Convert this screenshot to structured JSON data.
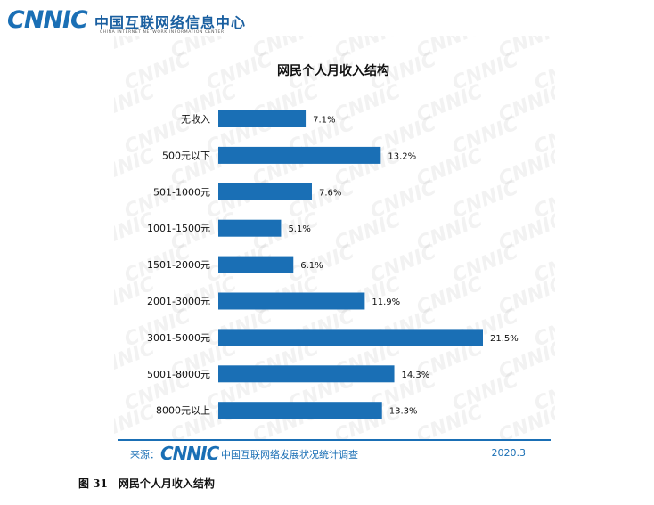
{
  "header": {
    "logo_text": "CNNIC",
    "org_name_cn": "中国互联网络信息中心",
    "org_name_en": "CHINA INTERNET NETWORK INFORMATION CENTER"
  },
  "watermark_text": "CNNIC",
  "chart_data": {
    "type": "bar",
    "orientation": "horizontal",
    "title": "网民个人月收入结构",
    "categories": [
      "无收入",
      "500元以下",
      "501-1000元",
      "1001-1500元",
      "1501-2000元",
      "2001-3000元",
      "3001-5000元",
      "5001-8000元",
      "8000元以上"
    ],
    "values": [
      7.1,
      13.2,
      7.6,
      5.1,
      6.1,
      11.9,
      21.5,
      14.3,
      13.3
    ],
    "value_labels": [
      "7.1%",
      "13.2%",
      "7.6%",
      "5.1%",
      "6.1%",
      "11.9%",
      "21.5%",
      "14.3%",
      "13.3%"
    ],
    "unit": "%",
    "xlim": [
      0,
      21.5
    ],
    "bar_color": "#1a6fb5",
    "grid": false,
    "legend": "none"
  },
  "footer": {
    "source_label": "来源：",
    "logo_text": "CNNIC",
    "survey_name": "中国互联网络发展状况统计调查",
    "date": "2020.3"
  },
  "caption": {
    "figure_number": "图 31",
    "figure_title": "网民个人月收入结构"
  }
}
